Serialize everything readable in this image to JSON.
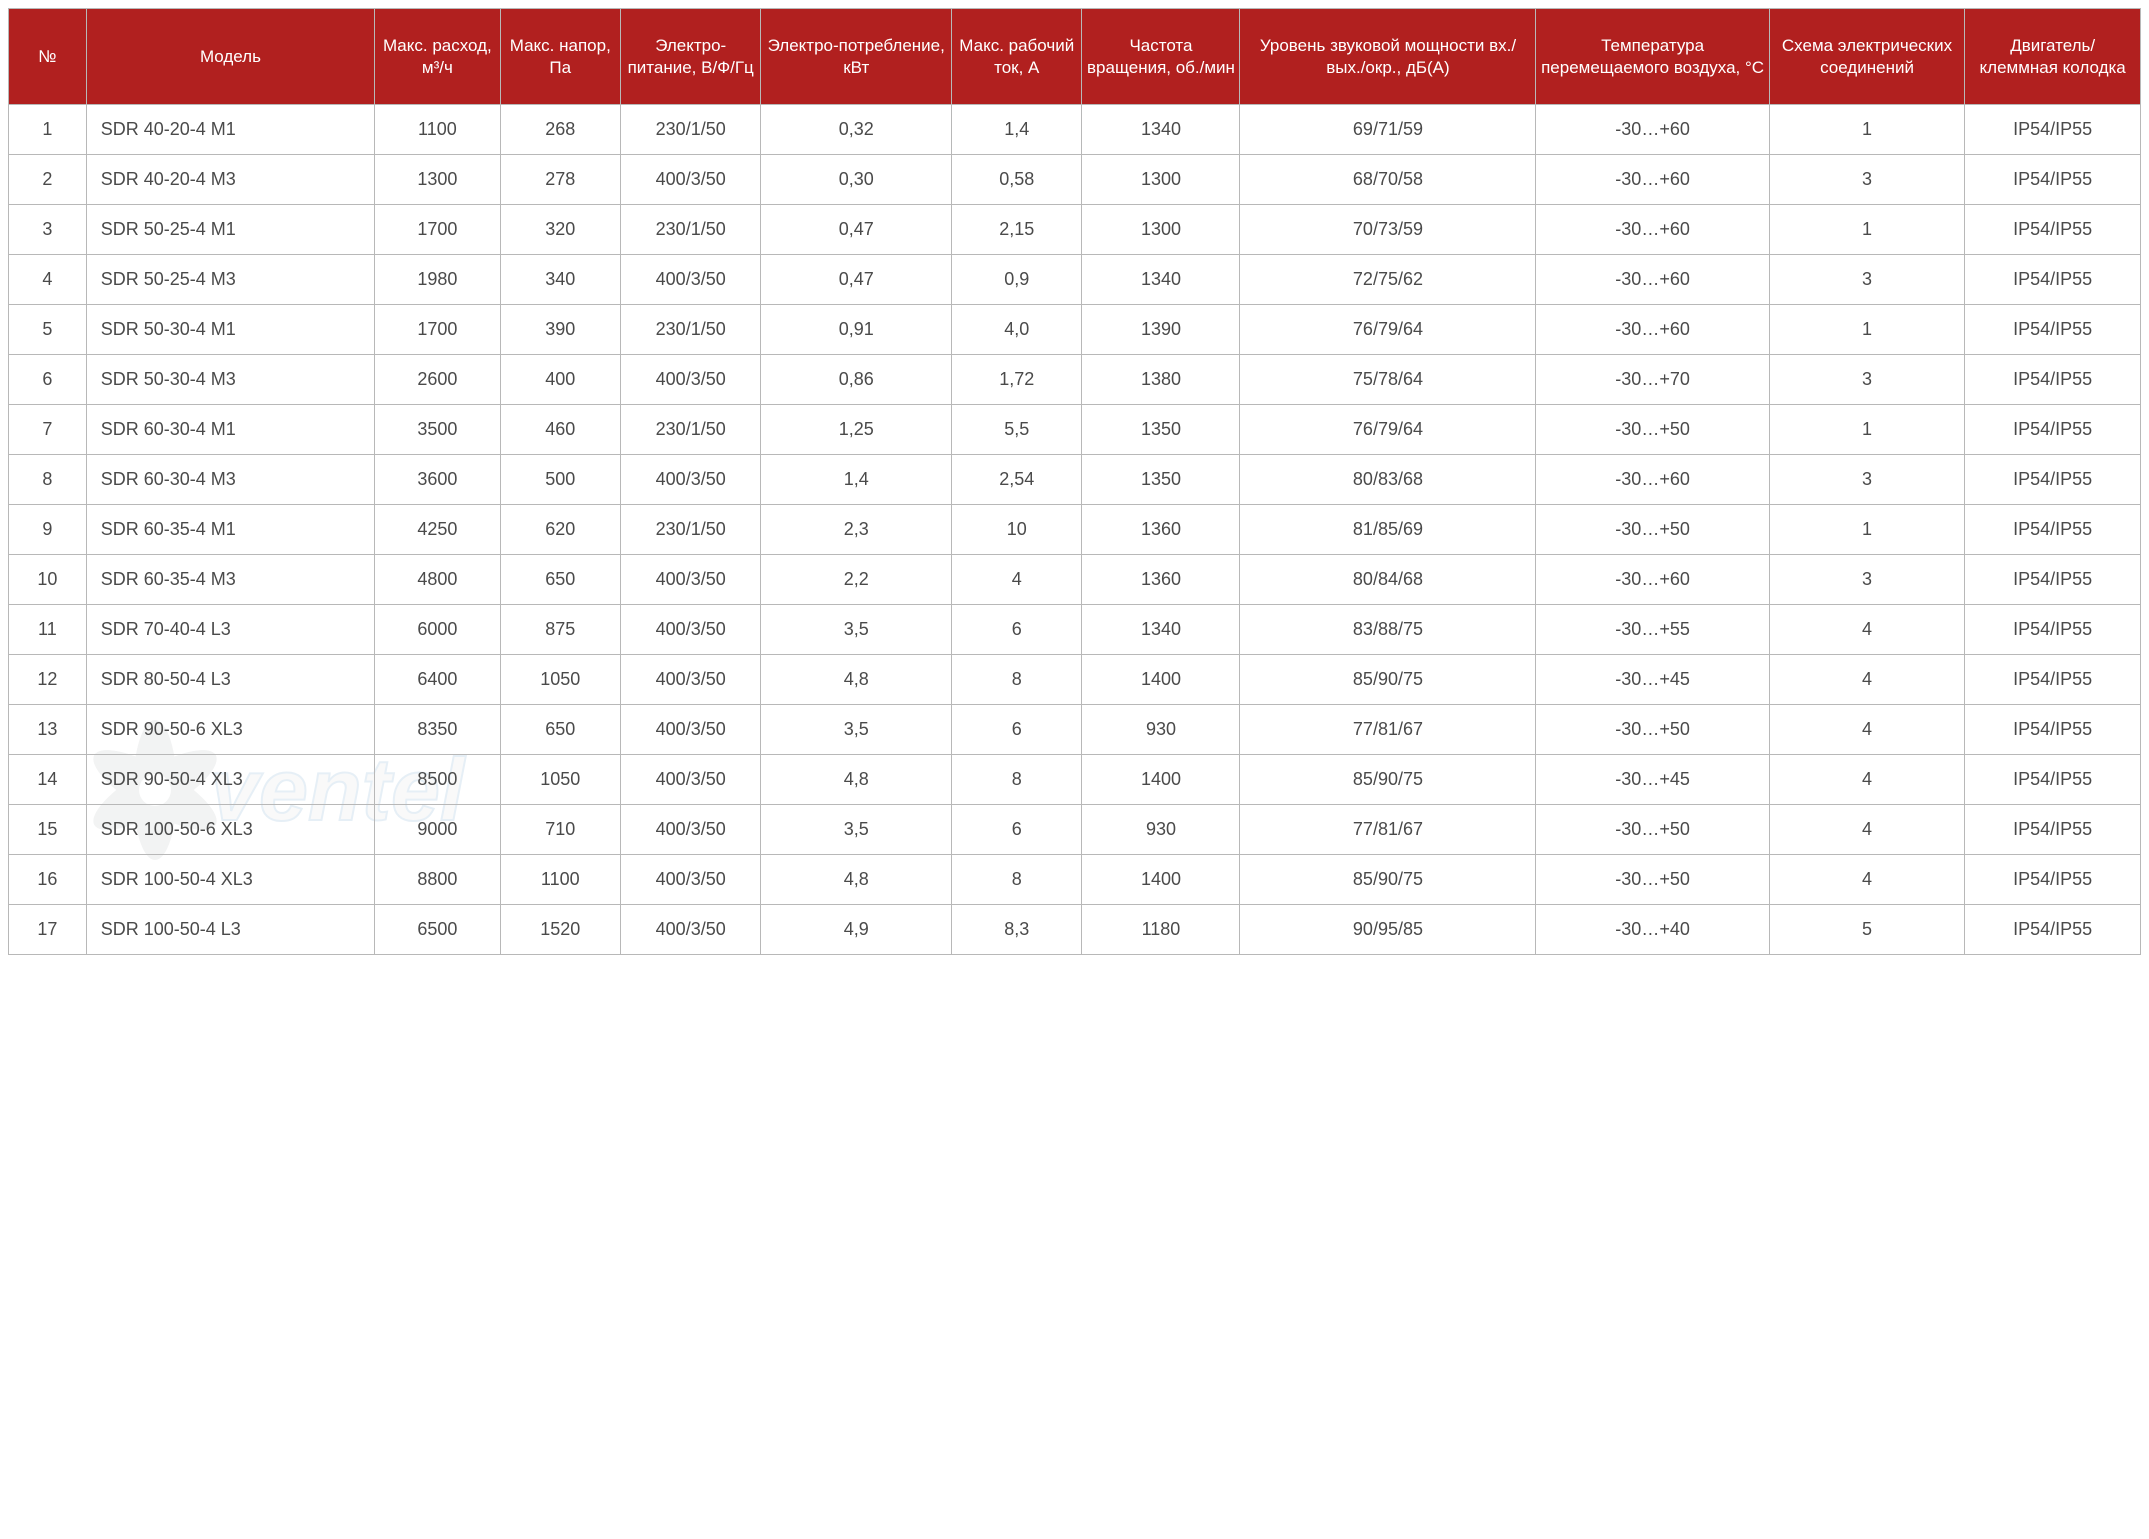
{
  "table": {
    "header_bg": "#b1201f",
    "header_fg": "#ffffff",
    "border_color": "#b8b8b8",
    "cell_fg": "#4a4a4a",
    "font_size_header": 17,
    "font_size_cell": 18,
    "columns": [
      {
        "key": "num",
        "label": "№"
      },
      {
        "key": "model",
        "label": "Модель"
      },
      {
        "key": "flow",
        "label": "Макс. расход, м³/ч"
      },
      {
        "key": "press",
        "label": "Макс. напор, Па"
      },
      {
        "key": "power",
        "label": "Электро-питание, В/Ф/Гц"
      },
      {
        "key": "cons",
        "label": "Электро-потребление, кВт"
      },
      {
        "key": "amp",
        "label": "Макс. рабочий ток, А"
      },
      {
        "key": "rpm",
        "label": "Частота вращения, об./мин"
      },
      {
        "key": "noise",
        "label": "Уровень звуковой мощности вх./вых./окр., дБ(А)"
      },
      {
        "key": "temp",
        "label": "Температура перемещаемого воздуха, °С"
      },
      {
        "key": "schem",
        "label": "Схема электрических соединений"
      },
      {
        "key": "ip",
        "label": "Двигатель/ клеммная колодка"
      }
    ],
    "rows": [
      {
        "num": "1",
        "model": "SDR 40-20-4 M1",
        "flow": "1100",
        "press": "268",
        "power": "230/1/50",
        "cons": "0,32",
        "amp": "1,4",
        "rpm": "1340",
        "noise": "69/71/59",
        "temp": "-30…+60",
        "schem": "1",
        "ip": "IP54/IP55"
      },
      {
        "num": "2",
        "model": "SDR 40-20-4 M3",
        "flow": "1300",
        "press": "278",
        "power": "400/3/50",
        "cons": "0,30",
        "amp": "0,58",
        "rpm": "1300",
        "noise": "68/70/58",
        "temp": "-30…+60",
        "schem": "3",
        "ip": "IP54/IP55"
      },
      {
        "num": "3",
        "model": "SDR 50-25-4 M1",
        "flow": "1700",
        "press": "320",
        "power": "230/1/50",
        "cons": "0,47",
        "amp": "2,15",
        "rpm": "1300",
        "noise": "70/73/59",
        "temp": "-30…+60",
        "schem": "1",
        "ip": "IP54/IP55"
      },
      {
        "num": "4",
        "model": "SDR 50-25-4 M3",
        "flow": "1980",
        "press": "340",
        "power": "400/3/50",
        "cons": "0,47",
        "amp": "0,9",
        "rpm": "1340",
        "noise": "72/75/62",
        "temp": "-30…+60",
        "schem": "3",
        "ip": "IP54/IP55"
      },
      {
        "num": "5",
        "model": "SDR 50-30-4 M1",
        "flow": "1700",
        "press": "390",
        "power": "230/1/50",
        "cons": "0,91",
        "amp": "4,0",
        "rpm": "1390",
        "noise": "76/79/64",
        "temp": "-30…+60",
        "schem": "1",
        "ip": "IP54/IP55"
      },
      {
        "num": "6",
        "model": "SDR 50-30-4 M3",
        "flow": "2600",
        "press": "400",
        "power": "400/3/50",
        "cons": "0,86",
        "amp": "1,72",
        "rpm": "1380",
        "noise": "75/78/64",
        "temp": "-30…+70",
        "schem": "3",
        "ip": "IP54/IP55"
      },
      {
        "num": "7",
        "model": "SDR 60-30-4 M1",
        "flow": "3500",
        "press": "460",
        "power": "230/1/50",
        "cons": "1,25",
        "amp": "5,5",
        "rpm": "1350",
        "noise": "76/79/64",
        "temp": "-30…+50",
        "schem": "1",
        "ip": "IP54/IP55"
      },
      {
        "num": "8",
        "model": "SDR 60-30-4 M3",
        "flow": "3600",
        "press": "500",
        "power": "400/3/50",
        "cons": "1,4",
        "amp": "2,54",
        "rpm": "1350",
        "noise": "80/83/68",
        "temp": "-30…+60",
        "schem": "3",
        "ip": "IP54/IP55"
      },
      {
        "num": "9",
        "model": "SDR 60-35-4 M1",
        "flow": "4250",
        "press": "620",
        "power": "230/1/50",
        "cons": "2,3",
        "amp": "10",
        "rpm": "1360",
        "noise": "81/85/69",
        "temp": "-30…+50",
        "schem": "1",
        "ip": "IP54/IP55"
      },
      {
        "num": "10",
        "model": "SDR 60-35-4 M3",
        "flow": "4800",
        "press": "650",
        "power": "400/3/50",
        "cons": "2,2",
        "amp": "4",
        "rpm": "1360",
        "noise": "80/84/68",
        "temp": "-30…+60",
        "schem": "3",
        "ip": "IP54/IP55"
      },
      {
        "num": "11",
        "model": "SDR 70-40-4 L3",
        "flow": "6000",
        "press": "875",
        "power": "400/3/50",
        "cons": "3,5",
        "amp": "6",
        "rpm": "1340",
        "noise": "83/88/75",
        "temp": "-30…+55",
        "schem": "4",
        "ip": "IP54/IP55"
      },
      {
        "num": "12",
        "model": "SDR 80-50-4 L3",
        "flow": "6400",
        "press": "1050",
        "power": "400/3/50",
        "cons": "4,8",
        "amp": "8",
        "rpm": "1400",
        "noise": "85/90/75",
        "temp": "-30…+45",
        "schem": "4",
        "ip": "IP54/IP55"
      },
      {
        "num": "13",
        "model": "SDR 90-50-6 XL3",
        "flow": "8350",
        "press": "650",
        "power": "400/3/50",
        "cons": "3,5",
        "amp": "6",
        "rpm": "930",
        "noise": "77/81/67",
        "temp": "-30…+50",
        "schem": "4",
        "ip": "IP54/IP55"
      },
      {
        "num": "14",
        "model": "SDR 90-50-4 XL3",
        "flow": "8500",
        "press": "1050",
        "power": "400/3/50",
        "cons": "4,8",
        "amp": "8",
        "rpm": "1400",
        "noise": "85/90/75",
        "temp": "-30…+45",
        "schem": "4",
        "ip": "IP54/IP55"
      },
      {
        "num": "15",
        "model": "SDR 100-50-6 XL3",
        "flow": "9000",
        "press": "710",
        "power": "400/3/50",
        "cons": "3,5",
        "amp": "6",
        "rpm": "930",
        "noise": "77/81/67",
        "temp": "-30…+50",
        "schem": "4",
        "ip": "IP54/IP55"
      },
      {
        "num": "16",
        "model": "SDR 100-50-4 XL3",
        "flow": "8800",
        "press": "1100",
        "power": "400/3/50",
        "cons": "4,8",
        "amp": "8",
        "rpm": "1400",
        "noise": "85/90/75",
        "temp": "-30…+50",
        "schem": "4",
        "ip": "IP54/IP55"
      },
      {
        "num": "17",
        "model": "SDR 100-50-4 L3",
        "flow": "6500",
        "press": "1520",
        "power": "400/3/50",
        "cons": "4,9",
        "amp": "8,3",
        "rpm": "1180",
        "noise": "90/95/85",
        "temp": "-30…+40",
        "schem": "5",
        "ip": "IP54/IP55"
      }
    ]
  },
  "watermark": {
    "fan_color": "#9aa0a3",
    "text_fill": "#7e8486",
    "text_stroke": "#3b7fb8",
    "text": "ventel"
  }
}
